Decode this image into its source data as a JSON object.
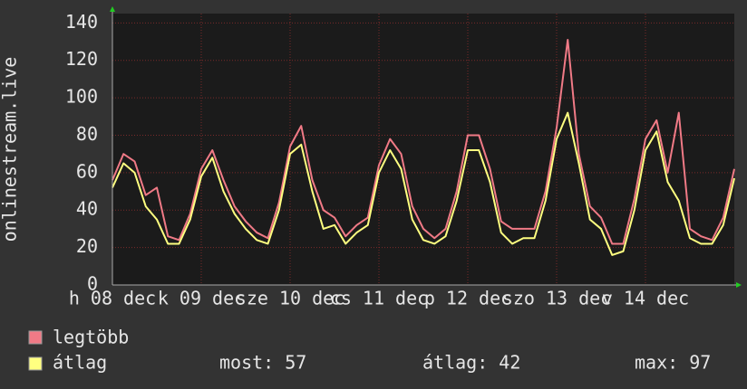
{
  "chart_data": {
    "type": "line",
    "y_label": "onlinestream.live",
    "x": [
      0,
      3,
      6,
      9,
      12,
      15,
      18,
      21,
      24,
      27,
      30,
      33,
      36,
      39,
      42,
      45,
      48,
      51,
      54,
      57,
      60,
      63,
      66,
      69,
      72,
      75,
      78,
      81,
      84,
      87,
      90,
      93,
      96,
      99,
      102,
      105,
      108,
      111,
      114,
      117,
      120,
      123,
      126,
      129,
      132,
      135,
      138,
      141,
      144,
      147,
      150,
      153,
      156,
      159,
      162,
      165,
      168
    ],
    "series": [
      {
        "name": "legtöbb",
        "color": "#f07a86",
        "values": [
          56,
          70,
          66,
          48,
          52,
          26,
          24,
          38,
          62,
          72,
          56,
          42,
          34,
          28,
          25,
          44,
          74,
          85,
          56,
          40,
          36,
          26,
          32,
          36,
          64,
          78,
          70,
          42,
          30,
          25,
          30,
          50,
          80,
          80,
          62,
          34,
          30,
          30,
          30,
          50,
          84,
          131,
          70,
          42,
          36,
          22,
          22,
          46,
          78,
          88,
          60,
          92,
          30,
          26,
          24,
          36,
          62
        ]
      },
      {
        "name": "átlag",
        "color": "#ffff80",
        "values": [
          52,
          65,
          60,
          42,
          35,
          22,
          22,
          35,
          58,
          68,
          50,
          38,
          30,
          24,
          22,
          40,
          70,
          75,
          50,
          30,
          32,
          22,
          28,
          32,
          60,
          72,
          62,
          35,
          24,
          22,
          26,
          45,
          72,
          72,
          55,
          28,
          22,
          25,
          25,
          45,
          78,
          92,
          65,
          35,
          30,
          16,
          18,
          40,
          72,
          82,
          55,
          45,
          25,
          22,
          22,
          32,
          57
        ]
      }
    ],
    "xlim": [
      0,
      168
    ],
    "xticks": [
      {
        "value": 0,
        "label": "h 08 dec"
      },
      {
        "value": 24,
        "label": "k 09 dec"
      },
      {
        "value": 48,
        "label": "sze 10 dec"
      },
      {
        "value": 72,
        "label": "cs 11 dec"
      },
      {
        "value": 96,
        "label": "p 12 dec"
      },
      {
        "value": 120,
        "label": "szo 13 dec"
      },
      {
        "value": 144,
        "label": "v 14 dec"
      }
    ],
    "ylim": [
      0,
      145
    ],
    "yticks": [
      0,
      20,
      40,
      60,
      80,
      100,
      120,
      140
    ],
    "grid": true,
    "stats": [
      "most: 57",
      "átlag: 42",
      "max: 97"
    ]
  }
}
